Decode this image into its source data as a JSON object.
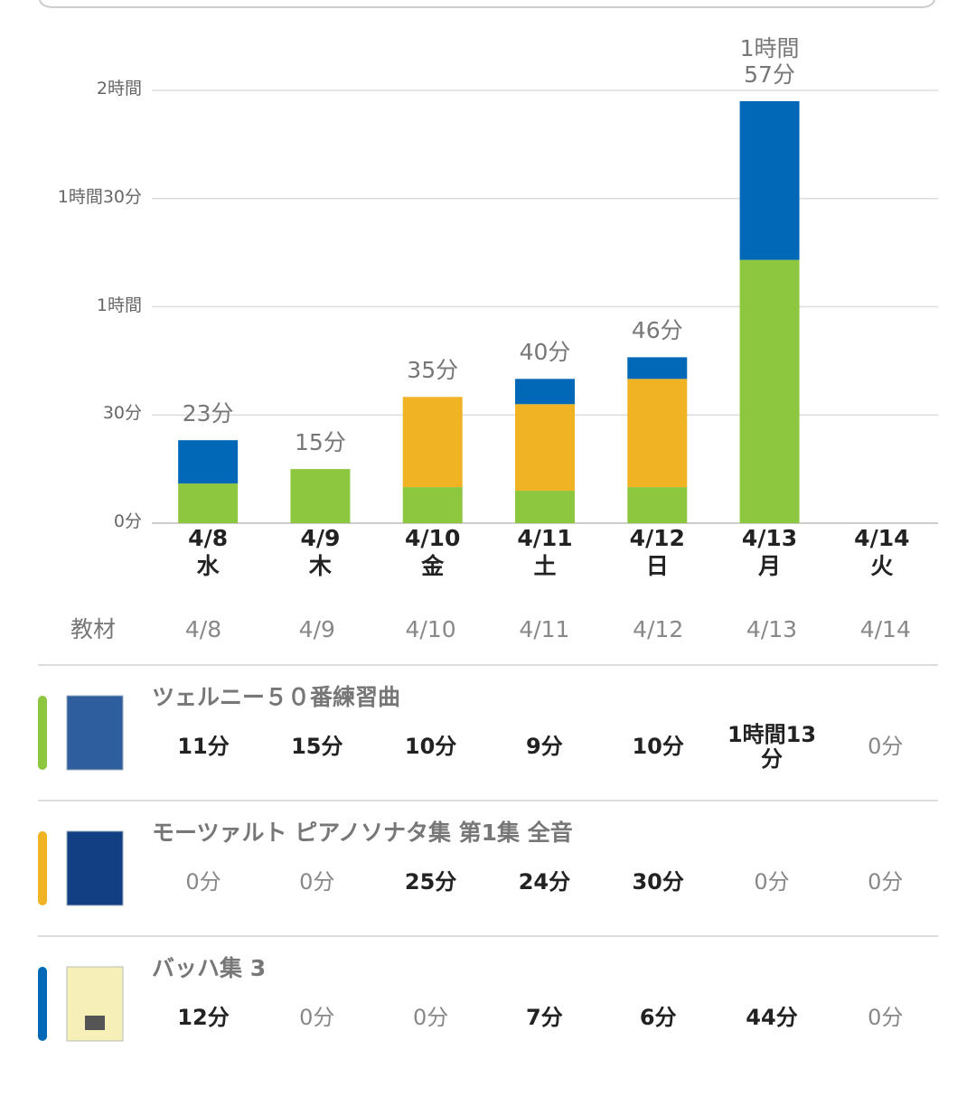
{
  "chart_data": {
    "type": "stacked_bar",
    "categories": [
      "4/8",
      "4/9",
      "4/10",
      "4/11",
      "4/12",
      "4/13",
      "4/14"
    ],
    "weekdays": [
      "水",
      "木",
      "金",
      "土",
      "日",
      "月",
      "火"
    ],
    "series": [
      {
        "name": "ツェルニー５０番練習曲",
        "color": "#8dc63f",
        "values": [
          11,
          15,
          10,
          9,
          10,
          73,
          0
        ]
      },
      {
        "name": "モーツァルト ピアノソナタ集 第1集 全音",
        "color": "#f0b323",
        "values": [
          0,
          0,
          25,
          24,
          30,
          0,
          0
        ]
      },
      {
        "name": "バッハ集 3",
        "color": "#0068b7",
        "values": [
          12,
          0,
          0,
          7,
          6,
          44,
          0
        ]
      }
    ],
    "totals": [
      23,
      15,
      35,
      40,
      46,
      117,
      null
    ],
    "total_labels": [
      "23分",
      "15分",
      "35分",
      "40分",
      "46分",
      "1時間57分",
      null
    ],
    "ylim": [
      0,
      120
    ],
    "yticks": [
      {
        "value": 0,
        "label": "0分"
      },
      {
        "value": 30,
        "label": "30分"
      },
      {
        "value": 60,
        "label": "1時間"
      },
      {
        "value": 90,
        "label": "1時間30分"
      },
      {
        "value": 120,
        "label": "2時間"
      }
    ],
    "grid": true
  },
  "table": {
    "header": "教材",
    "rows": [
      {
        "name": "ツェルニー５０番練習曲",
        "cells": [
          "11分",
          "15分",
          "10分",
          "9分",
          "10分",
          "1時間13分",
          "0分"
        ]
      },
      {
        "name": "モーツァルト ピアノソナタ集 第1集 全音",
        "cells": [
          "0分",
          "0分",
          "25分",
          "24分",
          "30分",
          "0分",
          "0分"
        ]
      },
      {
        "name": "バッハ集 3",
        "cells": [
          "12分",
          "0分",
          "0分",
          "7分",
          "6分",
          "44分",
          "0分"
        ]
      }
    ]
  }
}
